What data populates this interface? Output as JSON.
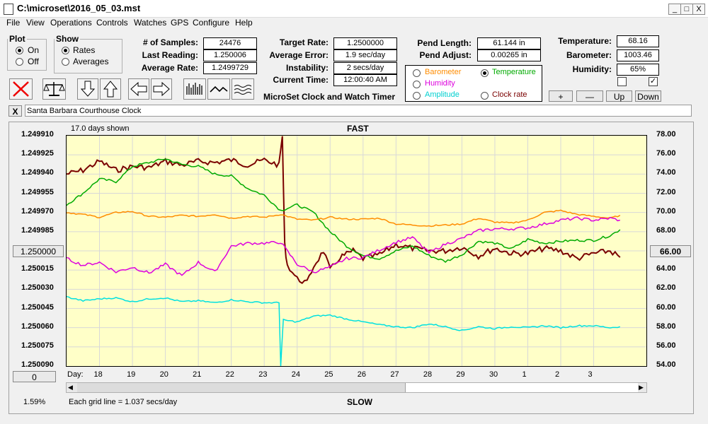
{
  "window": {
    "title": "C:\\microset\\2016_05_03.mst",
    "minimize": "_",
    "restore": "□",
    "close": "X"
  },
  "menu": [
    "File",
    "View",
    "Operations",
    "Controls",
    "Watches",
    "GPS",
    "Configure",
    "Help"
  ],
  "plot_group": {
    "title": "Plot",
    "on": "On",
    "off": "Off",
    "selected": "On"
  },
  "show_group": {
    "title": "Show",
    "rates": "Rates",
    "averages": "Averages",
    "selected": "Rates"
  },
  "stats": {
    "samples_label": "# of Samples:",
    "samples": "24476",
    "last_reading_label": "Last Reading:",
    "last_reading": "1.250006",
    "avg_rate_label": "Average Rate:",
    "avg_rate": "1.2499729",
    "target_rate_label": "Target Rate:",
    "target_rate": "1.2500000",
    "avg_error_label": "Average Error:",
    "avg_error": "1.9 sec/day",
    "instability_label": "Instability:",
    "instability": "2 secs/day",
    "current_time_label": "Current Time:",
    "current_time": "12:00:40 AM",
    "pend_length_label": "Pend Length:",
    "pend_length": "61.144 in",
    "pend_adjust_label": "Pend Adjust:",
    "pend_adjust": "0.00265 in",
    "temperature_label": "Temperature:",
    "temperature": "68.16",
    "barometer_label": "Barometer:",
    "barometer": "1003.46",
    "humidity_label": "Humidity:",
    "humidity": "65%"
  },
  "app_label": "MicroSet Clock and Watch Timer",
  "series_select": {
    "barometer": "Barometer",
    "temperature": "Temperature",
    "humidity": "Humidity",
    "amplitude": "Amplitude",
    "clock_rate": "Clock rate",
    "selected": "Temperature"
  },
  "adjust_buttons": {
    "plus": "+",
    "minus": "—",
    "up": "Up",
    "down": "Down"
  },
  "checkboxes": [
    {
      "checked": false
    },
    {
      "checked": true
    }
  ],
  "name_bar": {
    "close": "X",
    "clock_name": "Santa Barbara Courthouse Clock"
  },
  "plot_header": {
    "days_shown": "17.0 days shown",
    "fast": "FAST",
    "slow": "SLOW"
  },
  "left_button_value": "1.250000",
  "right_button_value": "66.00",
  "bottom_left_button": "0",
  "percent": "1.59%",
  "grid_note": "Each grid line = 1.037 secs/day",
  "colors": {
    "rate": "#7a0000",
    "temperature": "#00aa00",
    "barometer": "#ff8c00",
    "humidity": "#dd00dd",
    "amplitude": "#00e0e0",
    "plot_bg": "#ffffc8",
    "grid": "#d8d8d8"
  },
  "chart_data": {
    "type": "line",
    "title": "",
    "xlabel": "Day:",
    "x_ticks": [
      "18",
      "19",
      "20",
      "21",
      "22",
      "23",
      "24",
      "25",
      "26",
      "27",
      "28",
      "29",
      "30",
      "1",
      "2",
      "3"
    ],
    "y_left_ticks": [
      "1.249910",
      "1.249925",
      "1.249940",
      "1.249955",
      "1.249970",
      "1.249985",
      "1.250000",
      "1.250015",
      "1.250030",
      "1.250045",
      "1.250060",
      "1.250075",
      "1.250090"
    ],
    "y_left_range": [
      1.24991,
      1.25009
    ],
    "y_right_ticks": [
      "78.00",
      "76.00",
      "74.00",
      "72.00",
      "70.00",
      "68.00",
      "66.00",
      "64.00",
      "62.00",
      "60.00",
      "58.00",
      "56.00",
      "54.00"
    ],
    "y_right_range": [
      54,
      78
    ],
    "x_range": [
      17.0,
      34.6
    ],
    "series": [
      {
        "key": "rate",
        "values": [
          [
            17.0,
            1.24994
          ],
          [
            17.5,
            1.249937
          ],
          [
            18.0,
            1.24993
          ],
          [
            18.5,
            1.249937
          ],
          [
            19.0,
            1.249934
          ],
          [
            19.5,
            1.249935
          ],
          [
            20.0,
            1.24993
          ],
          [
            20.5,
            1.249933
          ],
          [
            21.0,
            1.24993
          ],
          [
            21.5,
            1.249931
          ],
          [
            22.0,
            1.249929
          ],
          [
            22.5,
            1.249933
          ],
          [
            23.0,
            1.249929
          ],
          [
            23.45,
            1.249933
          ],
          [
            23.55,
            1.24991
          ],
          [
            23.62,
            1.249995
          ],
          [
            23.7,
            1.250011
          ],
          [
            24.0,
            1.250022
          ],
          [
            24.3,
            1.250025
          ],
          [
            24.5,
            1.250012
          ],
          [
            24.8,
            1.25
          ],
          [
            25.0,
            1.250015
          ],
          [
            25.3,
            1.250005
          ],
          [
            25.7,
            1.25
          ],
          [
            26.0,
            1.250006
          ],
          [
            26.5,
            1.250003
          ],
          [
            27.0,
            1.249995
          ],
          [
            27.5,
            1.249998
          ],
          [
            28.0,
            1.25
          ],
          [
            28.5,
            1.25
          ],
          [
            29.0,
            1.249997
          ],
          [
            29.5,
            1.250004
          ],
          [
            30.0,
            1.249998
          ],
          [
            30.5,
            1.250002
          ],
          [
            31.0,
            1.250002
          ],
          [
            31.5,
            1.249998
          ],
          [
            32.0,
            1.25
          ],
          [
            32.5,
            1.250006
          ],
          [
            33.0,
            1.250002
          ],
          [
            33.5,
            1.25
          ],
          [
            33.8,
            1.250005
          ]
        ]
      },
      {
        "key": "temperature",
        "values": [
          [
            17.0,
            70.8
          ],
          [
            17.5,
            72.0
          ],
          [
            18.0,
            73.5
          ],
          [
            18.5,
            73.2
          ],
          [
            19.0,
            74.8
          ],
          [
            19.5,
            75.2
          ],
          [
            20.0,
            75.6
          ],
          [
            20.5,
            75.0
          ],
          [
            21.0,
            74.8
          ],
          [
            21.5,
            74.0
          ],
          [
            22.0,
            73.8
          ],
          [
            22.5,
            72.5
          ],
          [
            23.0,
            71.8
          ],
          [
            23.5,
            70.2
          ],
          [
            24.0,
            70.8
          ],
          [
            24.5,
            70.0
          ],
          [
            25.0,
            68.0
          ],
          [
            25.5,
            66.5
          ],
          [
            26.0,
            65.5
          ],
          [
            26.5,
            65.2
          ],
          [
            27.0,
            66.0
          ],
          [
            27.5,
            66.5
          ],
          [
            28.0,
            65.5
          ],
          [
            28.5,
            64.9
          ],
          [
            29.0,
            65.6
          ],
          [
            29.5,
            67.0
          ],
          [
            30.0,
            66.8
          ],
          [
            30.5,
            66.2
          ],
          [
            31.0,
            67.2
          ],
          [
            31.5,
            66.8
          ],
          [
            32.0,
            67.0
          ],
          [
            32.5,
            67.1
          ],
          [
            33.0,
            67.1
          ],
          [
            33.5,
            67.6
          ],
          [
            33.8,
            68.2
          ]
        ]
      },
      {
        "key": "barometer",
        "values": [
          [
            17.0,
            70.0
          ],
          [
            17.5,
            69.8
          ],
          [
            18.0,
            69.5
          ],
          [
            18.5,
            70.0
          ],
          [
            19.0,
            70.1
          ],
          [
            19.5,
            69.6
          ],
          [
            20.0,
            69.5
          ],
          [
            20.5,
            69.7
          ],
          [
            21.0,
            69.6
          ],
          [
            21.5,
            69.8
          ],
          [
            22.0,
            69.4
          ],
          [
            22.5,
            69.6
          ],
          [
            23.0,
            69.5
          ],
          [
            23.5,
            69.8
          ],
          [
            24.0,
            69.3
          ],
          [
            24.5,
            69.2
          ],
          [
            25.0,
            69.5
          ],
          [
            25.5,
            69.3
          ],
          [
            26.0,
            69.3
          ],
          [
            26.5,
            69.4
          ],
          [
            27.0,
            68.8
          ],
          [
            27.5,
            68.7
          ],
          [
            28.0,
            68.6
          ],
          [
            28.5,
            68.7
          ],
          [
            29.0,
            68.8
          ],
          [
            29.5,
            69.4
          ],
          [
            30.0,
            69.0
          ],
          [
            30.5,
            68.9
          ],
          [
            31.0,
            69.2
          ],
          [
            31.5,
            70.0
          ],
          [
            32.0,
            70.2
          ],
          [
            32.5,
            69.8
          ],
          [
            33.0,
            69.6
          ],
          [
            33.5,
            69.4
          ],
          [
            33.8,
            69.7
          ]
        ]
      },
      {
        "key": "humidity",
        "values": [
          [
            17.0,
            65.2
          ],
          [
            17.5,
            64.5
          ],
          [
            18.0,
            64.8
          ],
          [
            18.5,
            63.8
          ],
          [
            19.0,
            64.3
          ],
          [
            19.5,
            63.7
          ],
          [
            20.0,
            64.6
          ],
          [
            20.5,
            63.4
          ],
          [
            21.0,
            64.8
          ],
          [
            21.5,
            63.8
          ],
          [
            22.0,
            66.5
          ],
          [
            22.5,
            66.8
          ],
          [
            23.0,
            66.8
          ],
          [
            23.5,
            66.9
          ],
          [
            24.0,
            64.6
          ],
          [
            24.5,
            63.8
          ],
          [
            25.0,
            64.3
          ],
          [
            25.5,
            65.2
          ],
          [
            26.0,
            65.3
          ],
          [
            26.5,
            66.1
          ],
          [
            27.0,
            66.9
          ],
          [
            27.5,
            67.4
          ],
          [
            28.0,
            65.8
          ],
          [
            28.5,
            66.7
          ],
          [
            29.0,
            67.3
          ],
          [
            29.5,
            68.1
          ],
          [
            30.0,
            68.3
          ],
          [
            30.5,
            68.3
          ],
          [
            31.0,
            68.4
          ],
          [
            31.5,
            68.8
          ],
          [
            32.0,
            69.2
          ],
          [
            32.5,
            69.4
          ],
          [
            33.0,
            69.2
          ],
          [
            33.5,
            69.4
          ],
          [
            33.8,
            69.2
          ]
        ]
      },
      {
        "key": "amplitude",
        "values": [
          [
            17.0,
            61.2
          ],
          [
            17.5,
            60.8
          ],
          [
            18.0,
            61.0
          ],
          [
            18.5,
            61.1
          ],
          [
            19.0,
            60.7
          ],
          [
            19.5,
            61.0
          ],
          [
            20.0,
            61.1
          ],
          [
            20.5,
            60.7
          ],
          [
            21.0,
            60.8
          ],
          [
            21.5,
            60.6
          ],
          [
            22.0,
            60.9
          ],
          [
            22.5,
            60.7
          ],
          [
            23.0,
            60.6
          ],
          [
            23.45,
            60.6
          ],
          [
            23.5,
            54.0
          ],
          [
            23.58,
            58.8
          ],
          [
            24.0,
            58.6
          ],
          [
            24.5,
            59.2
          ],
          [
            25.0,
            59.3
          ],
          [
            25.5,
            58.9
          ],
          [
            26.0,
            58.6
          ],
          [
            26.5,
            58.3
          ],
          [
            27.0,
            58.1
          ],
          [
            27.5,
            58.0
          ],
          [
            28.0,
            58.4
          ],
          [
            28.5,
            58.1
          ],
          [
            29.0,
            57.7
          ],
          [
            29.5,
            58.1
          ],
          [
            30.0,
            57.9
          ],
          [
            30.5,
            58.1
          ],
          [
            31.0,
            58.0
          ],
          [
            31.5,
            58.2
          ],
          [
            32.0,
            58.0
          ],
          [
            32.5,
            58.2
          ],
          [
            33.0,
            58.2
          ],
          [
            33.5,
            58.0
          ],
          [
            33.8,
            58.1
          ]
        ]
      }
    ]
  }
}
